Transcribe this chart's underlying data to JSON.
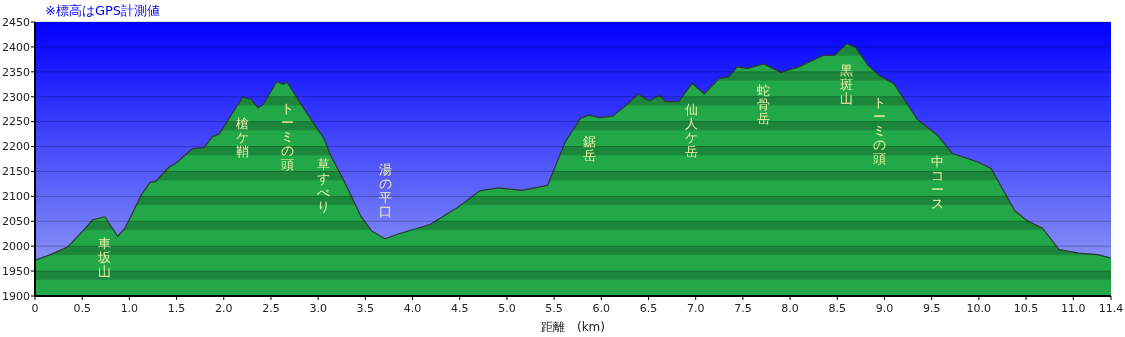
{
  "chart_data": {
    "type": "area",
    "title": "※標高はGPS計測値",
    "xlabel": "距離　(km)",
    "color": "#22a848",
    "x": [
      0,
      0.15,
      0.35,
      0.52,
      0.61,
      0.74,
      0.875,
      0.95,
      1.13,
      1.22,
      1.28,
      1.42,
      1.49,
      1.67,
      1.79,
      1.88,
      1.95,
      2.2,
      2.29,
      2.36,
      2.42,
      2.56,
      2.63,
      2.67,
      2.88,
      3.06,
      3.13,
      3.27,
      3.45,
      3.57,
      3.71,
      3.84,
      4.19,
      4.48,
      4.71,
      4.91,
      5.16,
      5.43,
      5.62,
      5.78,
      5.87,
      5.98,
      6.12,
      6.25,
      6.39,
      6.51,
      6.62,
      6.68,
      6.82,
      6.96,
      7.09,
      7.25,
      7.35,
      7.44,
      7.55,
      7.72,
      7.9,
      8.08,
      8.35,
      8.47,
      8.6,
      8.69,
      8.83,
      8.95,
      9.1,
      9.35,
      9.56,
      9.72,
      9.99,
      10.13,
      10.38,
      10.52,
      10.67,
      10.85,
      11.06,
      11.26,
      11.4
    ],
    "values": [
      1972,
      1982,
      1999,
      2033,
      2053,
      2059,
      2020,
      2035,
      2104,
      2128,
      2130,
      2159,
      2166,
      2196,
      2198,
      2220,
      2225,
      2299,
      2295,
      2278,
      2285,
      2330,
      2325,
      2329,
      2267,
      2217,
      2183,
      2133,
      2061,
      2030,
      2015,
      2024,
      2044,
      2078,
      2111,
      2117,
      2112,
      2122,
      2210,
      2257,
      2263,
      2258,
      2261,
      2281,
      2305,
      2292,
      2303,
      2290,
      2290,
      2327,
      2306,
      2337,
      2340,
      2360,
      2357,
      2366,
      2349,
      2359,
      2383,
      2383,
      2406,
      2400,
      2362,
      2342,
      2326,
      2254,
      2223,
      2186,
      2169,
      2156,
      2071,
      2050,
      2037,
      1993,
      1986,
      1983,
      1976
    ],
    "xlim": [
      0,
      11.4
    ],
    "xticks": [
      0,
      {
        "value": 0.5,
        "label": "0.5"
      },
      {
        "value": 1,
        "label": "1.0"
      },
      1.5,
      {
        "value": 2,
        "label": "2.0"
      },
      2.5,
      {
        "value": 3,
        "label": "3.0"
      },
      3.5,
      {
        "value": 4,
        "label": "4.0"
      },
      4.5,
      {
        "value": 5,
        "label": "5.0"
      },
      5.5,
      {
        "value": 6,
        "label": "6.0"
      },
      6.5,
      {
        "value": 7,
        "label": "7.0"
      },
      7.5,
      {
        "value": 8,
        "label": "8.0"
      },
      8.5,
      {
        "value": 9,
        "label": "9.0"
      },
      9.5,
      {
        "value": 10,
        "label": "10.0"
      },
      10.5,
      {
        "value": 11,
        "label": "11.0"
      },
      11.4
    ],
    "ylim": [
      1900,
      2450
    ],
    "yticks": [
      1900,
      1950,
      2000,
      2050,
      2100,
      2150,
      2200,
      2250,
      2300,
      2350,
      2400,
      2450
    ],
    "grid": "y",
    "annotations": [
      {
        "text": "車坂山",
        "x": 0.74,
        "y": 2059
      },
      {
        "text": "槍ケ鞘",
        "x": 2.2,
        "y": 2299
      },
      {
        "text": "トーミの頭",
        "x": 2.67,
        "y": 2329
      },
      {
        "text": "草すべり",
        "x": 3.06,
        "y": 2217
      },
      {
        "text": "湯の平口",
        "x": 3.71,
        "y": 2015
      },
      {
        "text": "鋸岳",
        "x": 5.87,
        "y": 2263
      },
      {
        "text": "仙人ケ岳",
        "x": 6.96,
        "y": 2327
      },
      {
        "text": "蛇骨岳",
        "x": 7.72,
        "y": 2366
      },
      {
        "text": "黒斑山",
        "x": 8.6,
        "y": 2406
      },
      {
        "text": "トーミの頭",
        "x": 8.95,
        "y": 2342
      },
      {
        "text": "中コース",
        "x": 9.56,
        "y": 2223
      }
    ]
  }
}
